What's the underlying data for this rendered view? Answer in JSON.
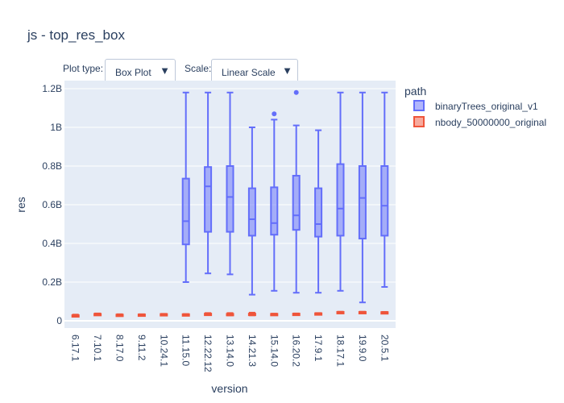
{
  "title": "js - top_res_box",
  "controls": {
    "plot_type_label": "Plot type:",
    "plot_type_value": "Box Plot",
    "scale_label": "Scale:",
    "scale_value": "Linear Scale",
    "arrow_glyph": "▼"
  },
  "chart_data": {
    "type": "box",
    "title": "js - top_res_box",
    "xlabel": "version",
    "ylabel": "res",
    "ylim": [
      0,
      1.22
    ],
    "y_unit": "billions",
    "yticks": [
      {
        "value": 0,
        "label": "0"
      },
      {
        "value": 0.2,
        "label": "0.2B"
      },
      {
        "value": 0.4,
        "label": "0.4B"
      },
      {
        "value": 0.6,
        "label": "0.6B"
      },
      {
        "value": 0.8,
        "label": "0.8B"
      },
      {
        "value": 1.0,
        "label": "1B"
      },
      {
        "value": 1.2,
        "label": "1.2B"
      }
    ],
    "categories": [
      "6.17.1",
      "7.10.1",
      "8.17.0",
      "9.11.2",
      "10.24.1",
      "11.15.0",
      "12.22.12",
      "13.14.0",
      "14.21.3",
      "15.14.0",
      "16.20.2",
      "17.9.1",
      "18.17.1",
      "19.9.0",
      "20.5.1"
    ],
    "legend_title": "path",
    "legend_position": "top-right",
    "grid": true,
    "series": [
      {
        "name": "binaryTrees_original_v1",
        "color": "#636efa",
        "boxes": [
          null,
          null,
          null,
          null,
          null,
          {
            "min": 0.2,
            "q1": 0.395,
            "median": 0.515,
            "q3": 0.735,
            "max": 1.18
          },
          {
            "min": 0.245,
            "q1": 0.46,
            "median": 0.695,
            "q3": 0.795,
            "max": 1.18
          },
          {
            "min": 0.24,
            "q1": 0.46,
            "median": 0.64,
            "q3": 0.8,
            "max": 1.18
          },
          {
            "min": 0.135,
            "q1": 0.44,
            "median": 0.525,
            "q3": 0.685,
            "max": 1.0
          },
          {
            "min": 0.155,
            "q1": 0.445,
            "median": 0.505,
            "q3": 0.69,
            "max": 1.04,
            "outliers": [
              1.07
            ]
          },
          {
            "min": 0.145,
            "q1": 0.47,
            "median": 0.545,
            "q3": 0.75,
            "max": 1.01,
            "outliers": [
              1.18
            ]
          },
          {
            "min": 0.145,
            "q1": 0.435,
            "median": 0.5,
            "q3": 0.685,
            "max": 0.985
          },
          {
            "min": 0.155,
            "q1": 0.44,
            "median": 0.58,
            "q3": 0.81,
            "max": 1.18
          },
          {
            "min": 0.095,
            "q1": 0.425,
            "median": 0.635,
            "q3": 0.8,
            "max": 1.18
          },
          {
            "min": 0.175,
            "q1": 0.44,
            "median": 0.595,
            "q3": 0.8,
            "max": 1.18
          }
        ]
      },
      {
        "name": "nbody_50000000_original",
        "color": "#ef553b",
        "boxes": [
          {
            "min": 0.022,
            "q1": 0.025,
            "median": 0.027,
            "q3": 0.029,
            "max": 0.032
          },
          {
            "min": 0.031,
            "q1": 0.033,
            "median": 0.035,
            "q3": 0.036,
            "max": 0.038
          },
          {
            "min": 0.025,
            "q1": 0.028,
            "median": 0.03,
            "q3": 0.032,
            "max": 0.034
          },
          {
            "min": 0.031,
            "q1": 0.032,
            "median": 0.032,
            "q3": 0.033,
            "max": 0.034
          },
          {
            "min": 0.033,
            "q1": 0.034,
            "median": 0.034,
            "q3": 0.035,
            "max": 0.036
          },
          {
            "min": 0.032,
            "q1": 0.033,
            "median": 0.033,
            "q3": 0.034,
            "max": 0.035
          },
          {
            "min": 0.03,
            "q1": 0.033,
            "median": 0.035,
            "q3": 0.037,
            "max": 0.04
          },
          {
            "min": 0.028,
            "q1": 0.032,
            "median": 0.034,
            "q3": 0.036,
            "max": 0.04
          },
          {
            "min": 0.028,
            "q1": 0.032,
            "median": 0.035,
            "q3": 0.037,
            "max": 0.042
          },
          {
            "min": 0.033,
            "q1": 0.034,
            "median": 0.035,
            "q3": 0.036,
            "max": 0.037
          },
          {
            "min": 0.034,
            "q1": 0.035,
            "median": 0.036,
            "q3": 0.037,
            "max": 0.038
          },
          {
            "min": 0.036,
            "q1": 0.037,
            "median": 0.038,
            "q3": 0.039,
            "max": 0.04
          },
          {
            "min": 0.043,
            "q1": 0.044,
            "median": 0.045,
            "q3": 0.046,
            "max": 0.047
          },
          {
            "min": 0.043,
            "q1": 0.044,
            "median": 0.045,
            "q3": 0.046,
            "max": 0.047
          },
          {
            "min": 0.042,
            "q1": 0.043,
            "median": 0.044,
            "q3": 0.045,
            "max": 0.046
          }
        ]
      }
    ]
  }
}
